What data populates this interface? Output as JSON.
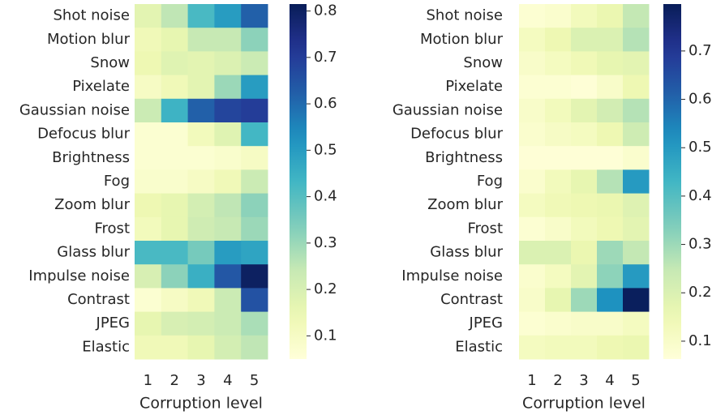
{
  "chart_data": [
    {
      "type": "heatmap",
      "colormap": "YlGnBu",
      "xlabel": "Corruption level",
      "x_categories": [
        "1",
        "2",
        "3",
        "4",
        "5"
      ],
      "y_categories": [
        "Shot noise",
        "Motion blur",
        "Snow",
        "Pixelate",
        "Gaussian noise",
        "Defocus blur",
        "Brightness",
        "Fog",
        "Zoom blur",
        "Frost",
        "Glass blur",
        "Impulse noise",
        "Contrast",
        "JPEG",
        "Elastic"
      ],
      "values": [
        [
          0.17,
          0.25,
          0.42,
          0.5,
          0.62
        ],
        [
          0.13,
          0.16,
          0.24,
          0.24,
          0.32
        ],
        [
          0.14,
          0.18,
          0.17,
          0.19,
          0.23
        ],
        [
          0.1,
          0.13,
          0.17,
          0.3,
          0.5
        ],
        [
          0.23,
          0.44,
          0.62,
          0.68,
          0.7
        ],
        [
          0.07,
          0.07,
          0.12,
          0.18,
          0.43
        ],
        [
          0.07,
          0.07,
          0.07,
          0.08,
          0.1
        ],
        [
          0.08,
          0.08,
          0.1,
          0.13,
          0.23
        ],
        [
          0.14,
          0.16,
          0.21,
          0.25,
          0.32
        ],
        [
          0.12,
          0.16,
          0.22,
          0.24,
          0.3
        ],
        [
          0.42,
          0.42,
          0.35,
          0.5,
          0.48
        ],
        [
          0.2,
          0.32,
          0.45,
          0.64,
          0.8
        ],
        [
          0.07,
          0.1,
          0.13,
          0.23,
          0.65
        ],
        [
          0.16,
          0.2,
          0.21,
          0.23,
          0.28
        ],
        [
          0.13,
          0.13,
          0.16,
          0.21,
          0.25
        ]
      ],
      "zlim": [
        0.05,
        0.815
      ],
      "zticks": [
        0.1,
        0.2,
        0.3,
        0.4,
        0.5,
        0.6,
        0.7,
        0.8
      ]
    },
    {
      "type": "heatmap",
      "colormap": "YlGnBu",
      "xlabel": "Corruption level",
      "x_categories": [
        "1",
        "2",
        "3",
        "4",
        "5"
      ],
      "y_categories": [
        "Shot noise",
        "Motion blur",
        "Snow",
        "Pixelate",
        "Gaussian noise",
        "Defocus blur",
        "Brightness",
        "Fog",
        "Zoom blur",
        "Frost",
        "Glass blur",
        "Impulse noise",
        "Contrast",
        "JPEG",
        "Elastic"
      ],
      "values": [
        [
          0.08,
          0.09,
          0.13,
          0.16,
          0.25
        ],
        [
          0.12,
          0.15,
          0.2,
          0.2,
          0.27
        ],
        [
          0.1,
          0.12,
          0.14,
          0.17,
          0.18
        ],
        [
          0.08,
          0.08,
          0.07,
          0.1,
          0.15
        ],
        [
          0.1,
          0.13,
          0.18,
          0.22,
          0.27
        ],
        [
          0.09,
          0.11,
          0.12,
          0.15,
          0.23
        ],
        [
          0.07,
          0.07,
          0.07,
          0.07,
          0.09
        ],
        [
          0.09,
          0.13,
          0.17,
          0.27,
          0.5
        ],
        [
          0.12,
          0.14,
          0.15,
          0.16,
          0.19
        ],
        [
          0.08,
          0.1,
          0.13,
          0.15,
          0.18
        ],
        [
          0.2,
          0.2,
          0.16,
          0.3,
          0.25
        ],
        [
          0.09,
          0.12,
          0.18,
          0.32,
          0.5
        ],
        [
          0.1,
          0.17,
          0.3,
          0.52,
          0.79
        ],
        [
          0.08,
          0.09,
          0.1,
          0.1,
          0.12
        ],
        [
          0.12,
          0.13,
          0.13,
          0.15,
          0.16
        ]
      ],
      "zlim": [
        0.063,
        0.797
      ],
      "zticks": [
        0.1,
        0.2,
        0.3,
        0.4,
        0.5,
        0.6,
        0.7
      ]
    }
  ]
}
